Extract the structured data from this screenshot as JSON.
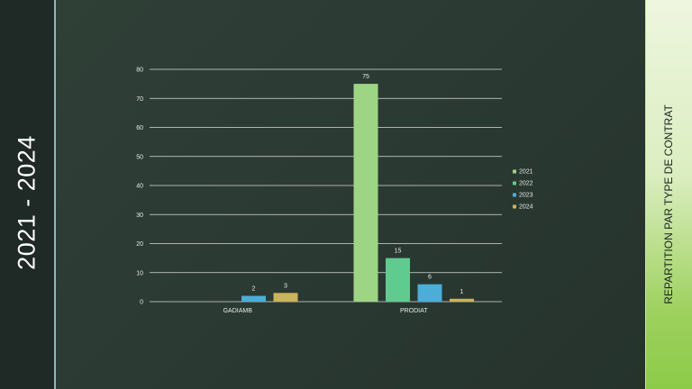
{
  "slide": {
    "left_title": "2021 - 2024",
    "right_title": "REPARTITION   PAR TYPE DE CONTRAT"
  },
  "colors": {
    "s2021": "#9ed584",
    "s2022": "#5fcb8e",
    "s2023": "#4aaed8",
    "s2024": "#c9b45a"
  },
  "chart_data": {
    "type": "bar",
    "categories": [
      "GADIAMB",
      "PRODIAT"
    ],
    "series": [
      {
        "name": "2021",
        "values": [
          0,
          75
        ]
      },
      {
        "name": "2022",
        "values": [
          0,
          15
        ]
      },
      {
        "name": "2023",
        "values": [
          2,
          6
        ]
      },
      {
        "name": "2024",
        "values": [
          3,
          1
        ]
      }
    ],
    "yticks": [
      "0",
      "10",
      "20",
      "30",
      "40",
      "50",
      "60",
      "70",
      "80"
    ],
    "ylim": [
      0,
      80
    ],
    "grid": true,
    "legend": "right"
  }
}
